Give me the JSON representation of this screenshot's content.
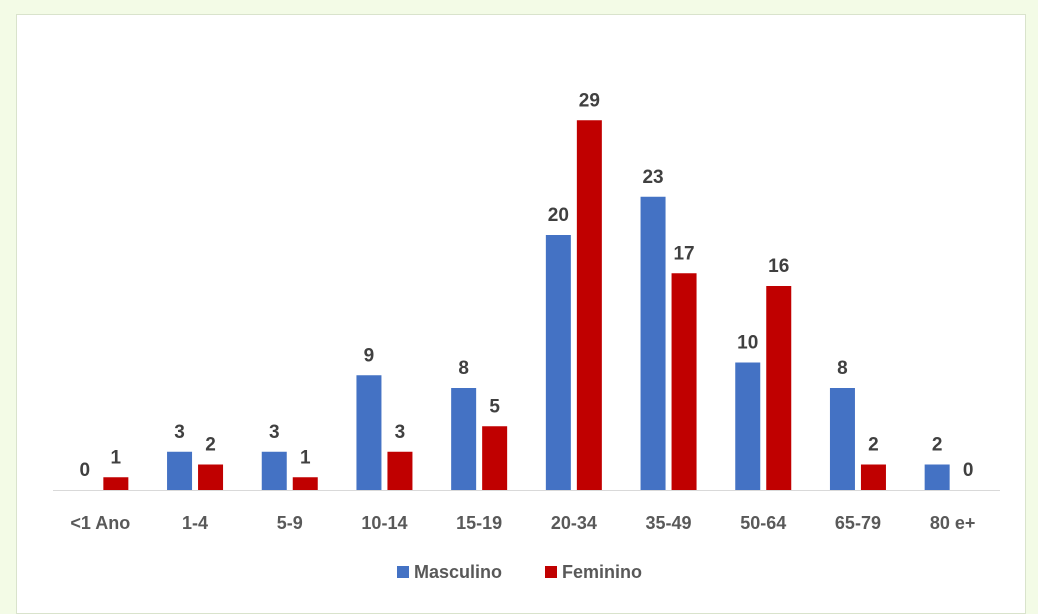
{
  "chart_data": {
    "type": "bar",
    "title": "",
    "xlabel": "",
    "ylabel": "",
    "ylim": [
      0,
      30
    ],
    "grid": false,
    "legend_position": "bottom",
    "categories": [
      "<1 Ano",
      "1-4",
      "5-9",
      "10-14",
      "15-19",
      "20-34",
      "35-49",
      "50-64",
      "65-79",
      "80 e+"
    ],
    "series": [
      {
        "name": "Masculino",
        "color": "#4472c4",
        "values": [
          0,
          3,
          3,
          9,
          8,
          20,
          23,
          10,
          8,
          2
        ]
      },
      {
        "name": "Feminino",
        "color": "#c00000",
        "values": [
          1,
          2,
          1,
          3,
          5,
          29,
          17,
          16,
          2,
          0
        ]
      }
    ]
  },
  "colors": {
    "background": "#f3fbe6",
    "panel": "#ffffff",
    "axis": "#d9d9d9",
    "text": "#595959",
    "value_text": "#404040"
  }
}
